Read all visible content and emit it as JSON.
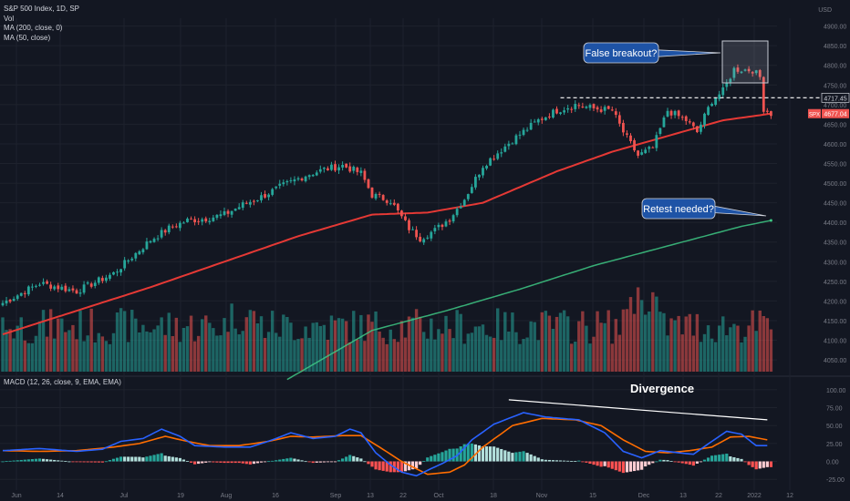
{
  "legend": {
    "symbol_line": "S&P 500 Index, 1D, SP",
    "vol": "Vol",
    "ma200": "MA (200, close, 0)",
    "ma50": "MA (50, close)"
  },
  "macd_legend": "MACD (12, 26, close, 9, EMA, EMA)",
  "currency": "USD",
  "colors": {
    "background": "#131722",
    "up": "#26a69a",
    "down": "#ef5350",
    "ma50": "#e53935",
    "ma200": "#3ec985",
    "macd": "#2962ff",
    "signal": "#ff6d00"
  },
  "annotations": {
    "false_breakout": "False breakout?",
    "retest": "Retest needed?",
    "divergence": "Divergence"
  },
  "badges": {
    "level": "4717.45",
    "spx_label": "SPX",
    "spx_price": "4677.04"
  },
  "chart_data": [
    {
      "type": "candlestick",
      "y_axis_ticks": [
        "4900.00",
        "4850.00",
        "4800.00",
        "4750.00",
        "4700.00",
        "4650.00",
        "4600.00",
        "4550.00",
        "4500.00",
        "4450.00",
        "4400.00",
        "4350.00",
        "4300.00",
        "4250.00",
        "4200.00",
        "4150.00",
        "4100.00",
        "4050.00"
      ],
      "ylim": [
        4020,
        4920
      ],
      "x_axis_ticks": [
        "Jun",
        "14",
        "Jul",
        "19",
        "Aug",
        "16",
        "Sep",
        "13",
        "22",
        "Oct",
        "18",
        "Nov",
        "15",
        "Dec",
        "13",
        "22",
        "2022",
        "12"
      ],
      "price_keypoints": [
        [
          0,
          4195
        ],
        [
          10,
          4245
        ],
        [
          20,
          4225
        ],
        [
          30,
          4270
        ],
        [
          40,
          4355
        ],
        [
          45,
          4385
        ],
        [
          50,
          4405
        ],
        [
          55,
          4410
        ],
        [
          60,
          4420
        ],
        [
          65,
          4445
        ],
        [
          70,
          4465
        ],
        [
          75,
          4490
        ],
        [
          82,
          4520
        ],
        [
          87,
          4535
        ],
        [
          92,
          4545
        ],
        [
          97,
          4525
        ],
        [
          100,
          4470
        ],
        [
          105,
          4455
        ],
        [
          110,
          4385
        ],
        [
          113,
          4360
        ],
        [
          117,
          4380
        ],
        [
          121,
          4410
        ],
        [
          125,
          4460
        ],
        [
          130,
          4545
        ],
        [
          138,
          4610
        ],
        [
          145,
          4660
        ],
        [
          150,
          4685
        ],
        [
          155,
          4700
        ],
        [
          160,
          4690
        ],
        [
          165,
          4685
        ],
        [
          168,
          4630
        ],
        [
          172,
          4570
        ],
        [
          176,
          4590
        ],
        [
          180,
          4685
        ],
        [
          185,
          4660
        ],
        [
          188,
          4630
        ],
        [
          192,
          4710
        ],
        [
          195,
          4735
        ],
        [
          198,
          4790
        ],
        [
          203,
          4788
        ],
        [
          205,
          4770
        ],
        [
          206,
          4690
        ],
        [
          208,
          4677
        ]
      ],
      "ma50_keypoints": [
        [
          0,
          4115
        ],
        [
          20,
          4175
        ],
        [
          40,
          4235
        ],
        [
          60,
          4300
        ],
        [
          80,
          4365
        ],
        [
          100,
          4420
        ],
        [
          115,
          4425
        ],
        [
          130,
          4450
        ],
        [
          150,
          4530
        ],
        [
          165,
          4580
        ],
        [
          180,
          4620
        ],
        [
          195,
          4660
        ],
        [
          208,
          4677
        ]
      ],
      "ma200_keypoints": [
        [
          77,
          4000
        ],
        [
          100,
          4125
        ],
        [
          120,
          4175
        ],
        [
          140,
          4230
        ],
        [
          160,
          4290
        ],
        [
          180,
          4340
        ],
        [
          200,
          4390
        ],
        [
          208,
          4405
        ]
      ],
      "resistance_level": 4717.45,
      "last_price": 4677.04
    },
    {
      "type": "line",
      "name": "MACD",
      "y_axis_ticks": [
        "100.00",
        "75.00",
        "50.00",
        "25.00",
        "0.00",
        "-25.00"
      ],
      "ylim": [
        -40,
        110
      ],
      "macd_keypoints": [
        [
          0,
          15
        ],
        [
          10,
          18
        ],
        [
          20,
          14
        ],
        [
          27,
          17
        ],
        [
          32,
          28
        ],
        [
          38,
          32
        ],
        [
          43,
          45
        ],
        [
          48,
          35
        ],
        [
          52,
          22
        ],
        [
          60,
          20
        ],
        [
          67,
          20
        ],
        [
          73,
          30
        ],
        [
          78,
          40
        ],
        [
          84,
          32
        ],
        [
          90,
          35
        ],
        [
          94,
          45
        ],
        [
          97,
          40
        ],
        [
          101,
          12
        ],
        [
          105,
          -5
        ],
        [
          108,
          -15
        ],
        [
          112,
          -20
        ],
        [
          116,
          -10
        ],
        [
          119,
          -3
        ],
        [
          123,
          8
        ],
        [
          127,
          30
        ],
        [
          133,
          52
        ],
        [
          141,
          68
        ],
        [
          147,
          62
        ],
        [
          156,
          58
        ],
        [
          163,
          40
        ],
        [
          168,
          14
        ],
        [
          173,
          5
        ],
        [
          178,
          15
        ],
        [
          183,
          12
        ],
        [
          187,
          10
        ],
        [
          192,
          28
        ],
        [
          196,
          42
        ],
        [
          200,
          38
        ],
        [
          204,
          22
        ],
        [
          207,
          22
        ]
      ],
      "signal_keypoints": [
        [
          0,
          15
        ],
        [
          10,
          14
        ],
        [
          20,
          15
        ],
        [
          30,
          20
        ],
        [
          37,
          25
        ],
        [
          44,
          35
        ],
        [
          50,
          28
        ],
        [
          56,
          22
        ],
        [
          64,
          22
        ],
        [
          72,
          28
        ],
        [
          78,
          35
        ],
        [
          84,
          34
        ],
        [
          92,
          36
        ],
        [
          97,
          36
        ],
        [
          102,
          20
        ],
        [
          108,
          0
        ],
        [
          115,
          -18
        ],
        [
          121,
          -15
        ],
        [
          125,
          -5
        ],
        [
          130,
          20
        ],
        [
          138,
          50
        ],
        [
          146,
          60
        ],
        [
          155,
          58
        ],
        [
          162,
          50
        ],
        [
          168,
          30
        ],
        [
          174,
          14
        ],
        [
          180,
          12
        ],
        [
          186,
          15
        ],
        [
          192,
          20
        ],
        [
          197,
          34
        ],
        [
          202,
          35
        ],
        [
          207,
          30
        ]
      ],
      "divergence_line": [
        [
          137,
          86
        ],
        [
          207,
          58
        ]
      ]
    }
  ]
}
